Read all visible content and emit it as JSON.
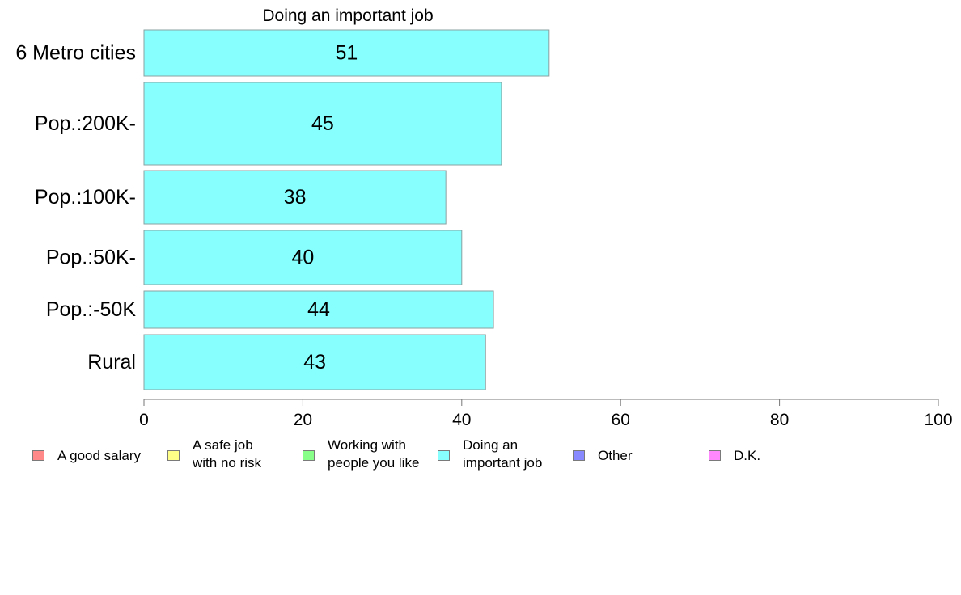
{
  "chart_data": {
    "type": "bar",
    "orientation": "horizontal",
    "title": "Doing an important job",
    "categories": [
      "6 Metro cities",
      "Pop.:200K-",
      "Pop.:100K-",
      "Pop.:50K-",
      "Pop.:-50K",
      "Rural"
    ],
    "values": [
      51,
      45,
      38,
      40,
      44,
      43
    ],
    "value_labels": [
      "51",
      "45",
      "38",
      "40",
      "44",
      "43"
    ],
    "xlim": [
      0,
      100
    ],
    "x_ticks": [
      0,
      20,
      40,
      60,
      80,
      100
    ],
    "x_tick_labels": [
      "0",
      "20",
      "40",
      "60",
      "80",
      "100"
    ],
    "bar_color": "#88ffff",
    "bar_stroke": "#8aa0a0",
    "grid": false,
    "legend_position": "bottom",
    "legend": [
      {
        "label": "A good salary",
        "color": "#ff8888"
      },
      {
        "label": "A safe job\nwith no risk",
        "color": "#ffff88"
      },
      {
        "label": "Working with\npeople you like",
        "color": "#88ff88"
      },
      {
        "label": "Doing an\nimportant job",
        "color": "#88ffff"
      },
      {
        "label": "Other",
        "color": "#8888ff"
      },
      {
        "label": "D.K.",
        "color": "#ff88ff"
      }
    ]
  }
}
